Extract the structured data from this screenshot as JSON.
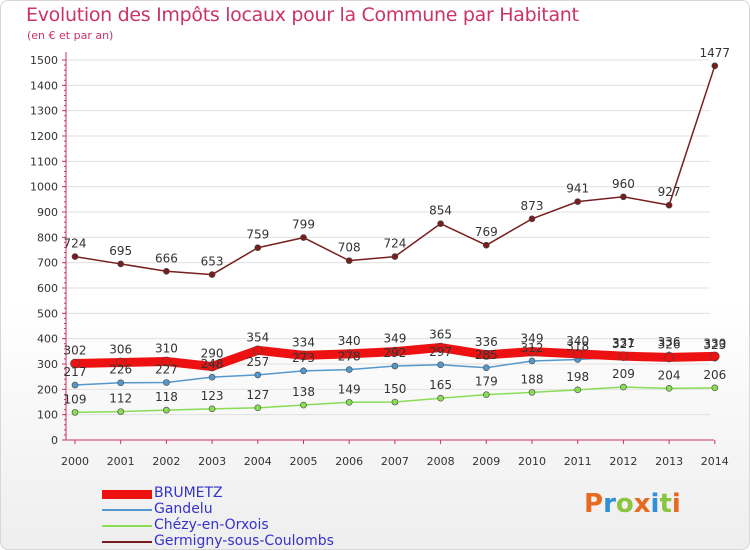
{
  "title": "Evolution des Impôts locaux pour la Commune par Habitant",
  "subtitle": "(en € et par an)",
  "logo_text": "Proxiti",
  "logo_colors": [
    "#e66a1f",
    "#2f8fd8",
    "#8bc53f",
    "#e66a1f",
    "#2f8fd8",
    "#8bc53f",
    "#e66a1f"
  ],
  "colors": {
    "title": "#cc3366",
    "axis": "#cc3366",
    "grid": "#e0e0e0",
    "labels": "#333333"
  },
  "chart_data": {
    "type": "line",
    "title": "Evolution des Impôts locaux pour la Commune par Habitant",
    "ylabel": "(en € et par an)",
    "xlabel": "",
    "x": [
      "2000",
      "2001",
      "2002",
      "2003",
      "2004",
      "2005",
      "2006",
      "2007",
      "2008",
      "2009",
      "2010",
      "2011",
      "2012",
      "2013",
      "2014"
    ],
    "ylim": [
      0,
      1500
    ],
    "yticks": [
      0,
      100,
      200,
      300,
      400,
      500,
      600,
      700,
      800,
      900,
      1000,
      1100,
      1200,
      1300,
      1400,
      1500
    ],
    "grid": "horizontal",
    "legend_position": "bottom-left",
    "series": [
      {
        "name": "BRUMETZ",
        "color": "#ee1111",
        "values": [
          302,
          306,
          310,
          290,
          354,
          334,
          340,
          349,
          365,
          336,
          349,
          340,
          331,
          326,
          330
        ],
        "value_labels": [
          "302",
          "306",
          "310",
          "290",
          "354",
          "334",
          "340",
          "349",
          "365",
          "336",
          "349",
          "340",
          "331",
          "326",
          "330"
        ]
      },
      {
        "name": "Gandelu",
        "color": "#5599cc",
        "values": [
          217,
          226,
          227,
          248,
          257,
          273,
          278,
          292,
          297,
          285,
          312,
          318,
          327,
          336,
          323
        ],
        "value_labels": [
          "217",
          "226",
          "227",
          "248",
          "257",
          "273",
          "278",
          "292",
          "297",
          "285",
          "312",
          "318",
          "327",
          "336",
          "323"
        ]
      },
      {
        "name": "Chézy-en-Orxois",
        "color": "#88dd55",
        "values": [
          109,
          112,
          118,
          123,
          127,
          138,
          149,
          150,
          165,
          179,
          188,
          198,
          209,
          204,
          206
        ],
        "value_labels": [
          "109",
          "112",
          "118",
          "123",
          "127",
          "138",
          "149",
          "150",
          "165",
          "179",
          "188",
          "198",
          "209",
          "204",
          "206"
        ]
      },
      {
        "name": "Germigny-sous-Coulombs",
        "color": "#771f1f",
        "values": [
          724,
          695,
          666,
          653,
          759,
          799,
          708,
          724,
          854,
          769,
          873,
          941,
          960,
          927,
          1477
        ],
        "value_labels": [
          "724",
          "695",
          "666",
          "653",
          "759",
          "799",
          "708",
          "724",
          "854",
          "769",
          "873",
          "941",
          "960",
          "927",
          "1477"
        ]
      }
    ]
  }
}
